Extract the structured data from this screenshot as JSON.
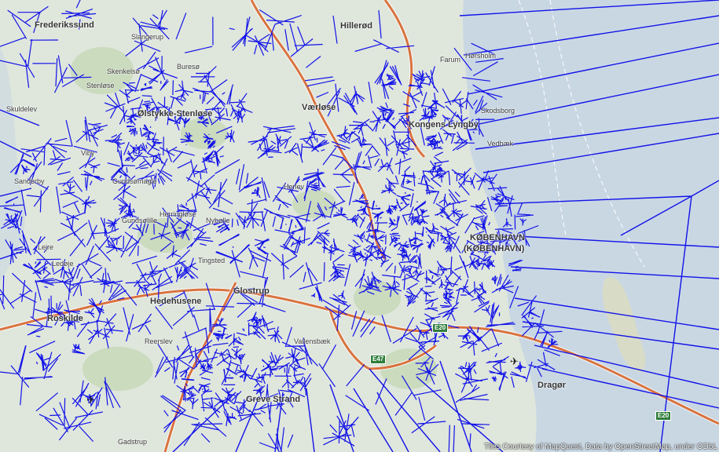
{
  "map": {
    "colors": {
      "water": "#c9d7e3",
      "land": "#dfe6dc",
      "green": "#c2d6b0",
      "motorway": "#d8733f",
      "voronoi": "#1212e8",
      "shield": "#2f7d3a"
    },
    "places": [
      {
        "name": "Frederikssund",
        "kind": "city"
      },
      {
        "name": "Slangerup",
        "kind": "place"
      },
      {
        "name": "Hillerød",
        "kind": "city"
      },
      {
        "name": "Farum",
        "kind": "place"
      },
      {
        "name": "Hørsholm",
        "kind": "place"
      },
      {
        "name": "Skenkelsø",
        "kind": "place"
      },
      {
        "name": "Buresø",
        "kind": "place"
      },
      {
        "name": "Skuldelev",
        "kind": "place"
      },
      {
        "name": "Stenløse",
        "kind": "place"
      },
      {
        "name": "Ølstykke-Stenløse",
        "kind": "city"
      },
      {
        "name": "Værløse",
        "kind": "city"
      },
      {
        "name": "Kongens Lyngby",
        "kind": "city"
      },
      {
        "name": "Skodsborg",
        "kind": "place"
      },
      {
        "name": "Vedbæk",
        "kind": "place"
      },
      {
        "name": "Viby",
        "kind": "place"
      },
      {
        "name": "Sanderby",
        "kind": "place"
      },
      {
        "name": "Gundsømagle",
        "kind": "place"
      },
      {
        "name": "Herlev",
        "kind": "place"
      },
      {
        "name": "Herringløse",
        "kind": "place"
      },
      {
        "name": "Gundsølille",
        "kind": "place"
      },
      {
        "name": "Nybølle",
        "kind": "place"
      },
      {
        "name": "KØBENHAVN",
        "kind": "city"
      },
      {
        "name": "(KØBENHAVN)",
        "kind": "city"
      },
      {
        "name": "Lejre",
        "kind": "place"
      },
      {
        "name": "Ledøje",
        "kind": "place"
      },
      {
        "name": "Tingsted",
        "kind": "place"
      },
      {
        "name": "Hedehusene",
        "kind": "city"
      },
      {
        "name": "Glostrup",
        "kind": "city"
      },
      {
        "name": "Reerslev",
        "kind": "place"
      },
      {
        "name": "Vallensbæk",
        "kind": "place"
      },
      {
        "name": "Greve Strand",
        "kind": "city"
      },
      {
        "name": "Dragør",
        "kind": "city"
      },
      {
        "name": "Gadstrup",
        "kind": "place"
      },
      {
        "name": "Roskilde",
        "kind": "city"
      }
    ],
    "road_shields": [
      "E20",
      "E47",
      "E20"
    ],
    "attribution": "Tiles Courtesy of MapQuest, Data by OpenStreetMap, under ODbL"
  }
}
